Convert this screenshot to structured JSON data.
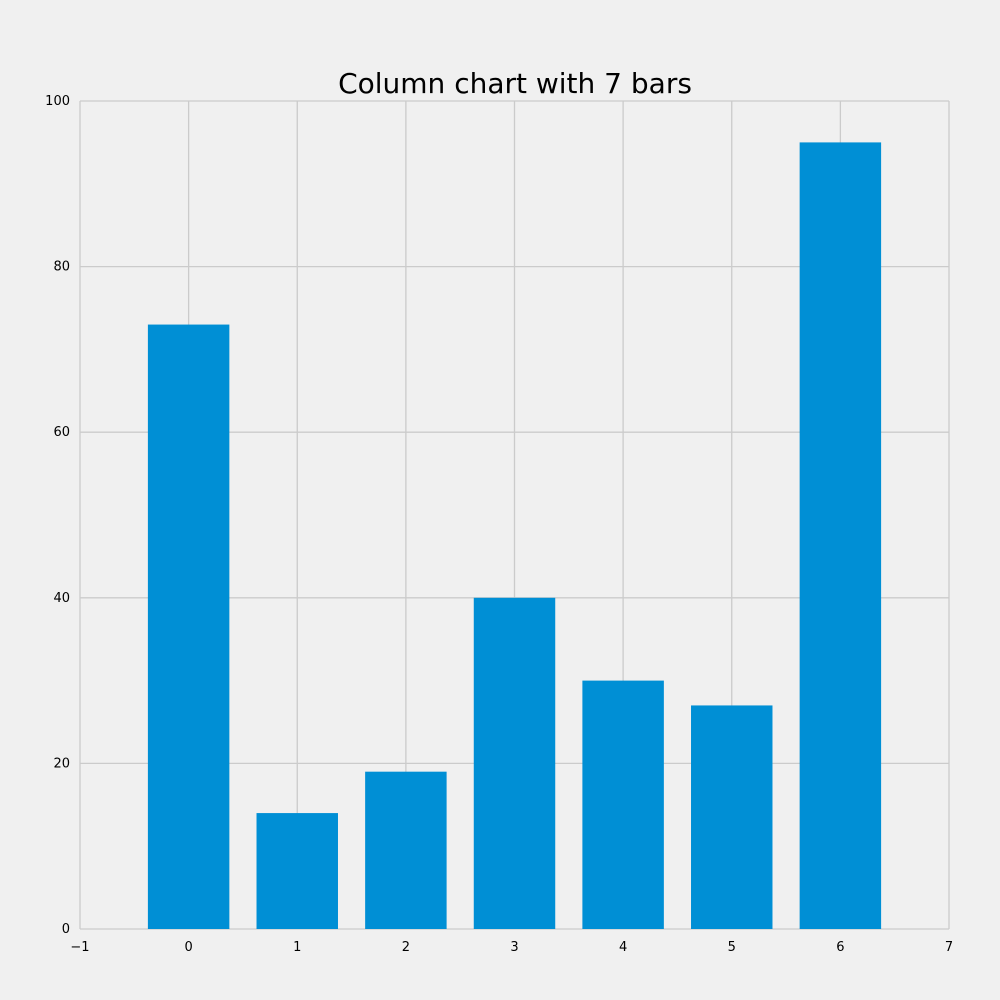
{
  "chart_data": {
    "type": "bar",
    "title": "Column chart with 7 bars",
    "categories": [
      0,
      1,
      2,
      3,
      4,
      5,
      6
    ],
    "values": [
      73,
      14,
      19,
      40,
      30,
      27,
      95
    ],
    "xlabel": "",
    "ylabel": "",
    "xlim": [
      -1,
      7
    ],
    "ylim": [
      0,
      100
    ],
    "x_ticks": [
      "−1",
      "0",
      "1",
      "2",
      "3",
      "4",
      "5",
      "6",
      "7"
    ],
    "y_ticks": [
      "0",
      "20",
      "40",
      "60",
      "80",
      "100"
    ],
    "grid": true,
    "bar_color": "#008fd5",
    "background_color": "#f0f0f0",
    "grid_color": "#cbcbcb"
  }
}
